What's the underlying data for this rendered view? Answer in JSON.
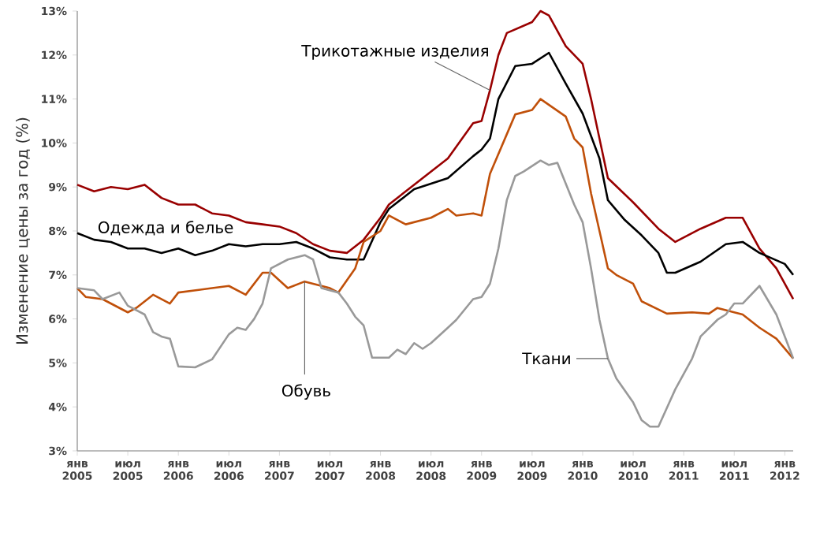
{
  "chart_data": {
    "type": "line",
    "ylabel": "Изменение  цены за год (%)",
    "xlim": [
      "2005-01",
      "2012-02"
    ],
    "xticks": [
      {
        "value": "2005-01",
        "label": "янв 2005"
      },
      {
        "value": "2005-07",
        "label": "июл 2005"
      },
      {
        "value": "2006-01",
        "label": "янв 2006"
      },
      {
        "value": "2006-07",
        "label": "июл 2006"
      },
      {
        "value": "2007-01",
        "label": "янв 2007"
      },
      {
        "value": "2007-07",
        "label": "июл 2007"
      },
      {
        "value": "2008-01",
        "label": "янв 2008"
      },
      {
        "value": "2008-07",
        "label": "июл 2008"
      },
      {
        "value": "2009-01",
        "label": "янв 2009"
      },
      {
        "value": "2009-07",
        "label": "июл 2009"
      },
      {
        "value": "2010-01",
        "label": "янв 2010"
      },
      {
        "value": "2010-07",
        "label": "июл 2010"
      },
      {
        "value": "2011-01",
        "label": "янв 2011"
      },
      {
        "value": "2011-07",
        "label": "июл 2011"
      },
      {
        "value": "2012-01",
        "label": "янв 2012"
      }
    ],
    "ylim": [
      3,
      13
    ],
    "yticks": [
      {
        "value": 3,
        "label": "3%"
      },
      {
        "value": 4,
        "label": "4%"
      },
      {
        "value": 5,
        "label": "5%"
      },
      {
        "value": 6,
        "label": "6%"
      },
      {
        "value": 7,
        "label": "7%"
      },
      {
        "value": 8,
        "label": "8%"
      },
      {
        "value": 9,
        "label": "9%"
      },
      {
        "value": 10,
        "label": "10%"
      },
      {
        "value": 11,
        "label": "11%"
      },
      {
        "value": 12,
        "label": "12%"
      },
      {
        "value": 13,
        "label": "13%"
      }
    ],
    "grid": false,
    "legend": false,
    "series": [
      {
        "name": "Трикотажные изделия",
        "color": "#990000",
        "x": [
          "2005-01",
          "2005-03",
          "2005-05",
          "2005-07",
          "2005-09",
          "2005-11",
          "2006-01",
          "2006-03",
          "2006-05",
          "2006-07",
          "2006-09",
          "2006-11",
          "2007-01",
          "2007-03",
          "2007-05",
          "2007-07",
          "2007-09",
          "2007-11",
          "2008-01",
          "2008-02",
          "2008-06",
          "2008-09",
          "2008-12",
          "2009-01",
          "2009-02",
          "2009-03",
          "2009-04",
          "2009-07",
          "2009-08",
          "2009-09",
          "2009-11",
          "2010-01",
          "2010-02",
          "2010-04",
          "2010-07",
          "2010-10",
          "2010-12",
          "2011-03",
          "2011-06",
          "2011-08",
          "2011-10",
          "2011-12",
          "2012-02"
        ],
        "values": [
          9.05,
          8.9,
          9.0,
          8.95,
          9.05,
          8.75,
          8.6,
          8.6,
          8.4,
          8.35,
          8.2,
          8.15,
          8.1,
          7.95,
          7.7,
          7.55,
          7.5,
          7.8,
          8.3,
          8.6,
          9.2,
          9.65,
          10.45,
          10.5,
          11.2,
          12.0,
          12.5,
          12.75,
          13.0,
          12.9,
          12.2,
          11.8,
          11.0,
          9.2,
          8.65,
          8.05,
          7.75,
          8.05,
          8.3,
          8.3,
          7.6,
          7.15,
          6.45
        ]
      },
      {
        "name": "Одежда и белье",
        "color": "#000000",
        "x": [
          "2005-01",
          "2005-03",
          "2005-05",
          "2005-07",
          "2005-09",
          "2005-11",
          "2006-01",
          "2006-03",
          "2006-05",
          "2006-07",
          "2006-09",
          "2006-11",
          "2007-01",
          "2007-03",
          "2007-05",
          "2007-07",
          "2007-09",
          "2007-11",
          "2008-01",
          "2008-02",
          "2008-05",
          "2008-09",
          "2008-12",
          "2009-01",
          "2009-02",
          "2009-03",
          "2009-05",
          "2009-07",
          "2009-09",
          "2009-11",
          "2010-01",
          "2010-03",
          "2010-04",
          "2010-06",
          "2010-08",
          "2010-10",
          "2010-11",
          "2010-12",
          "2011-03",
          "2011-06",
          "2011-08",
          "2011-10",
          "2012-01",
          "2012-02"
        ],
        "values": [
          7.95,
          7.8,
          7.75,
          7.6,
          7.6,
          7.5,
          7.6,
          7.45,
          7.55,
          7.7,
          7.65,
          7.7,
          7.7,
          7.75,
          7.6,
          7.4,
          7.35,
          7.35,
          8.2,
          8.5,
          8.95,
          9.2,
          9.7,
          9.85,
          10.1,
          11.0,
          11.75,
          11.8,
          12.05,
          11.35,
          10.67,
          9.65,
          8.7,
          8.25,
          7.9,
          7.5,
          7.05,
          7.05,
          7.3,
          7.7,
          7.75,
          7.5,
          7.25,
          7.0
        ]
      },
      {
        "name": "Обувь",
        "color": "#c0500a",
        "x": [
          "2005-01",
          "2005-02",
          "2005-04",
          "2005-07",
          "2005-08",
          "2005-10",
          "2005-12",
          "2006-01",
          "2006-05",
          "2006-07",
          "2006-09",
          "2006-11",
          "2006-12",
          "2007-02",
          "2007-04",
          "2007-07",
          "2007-08",
          "2007-10",
          "2007-11",
          "2008-01",
          "2008-02",
          "2008-04",
          "2008-07",
          "2008-09",
          "2008-10",
          "2008-12",
          "2009-01",
          "2009-02",
          "2009-05",
          "2009-07",
          "2009-08",
          "2009-11",
          "2009-12",
          "2010-01",
          "2010-02",
          "2010-04",
          "2010-05",
          "2010-07",
          "2010-08",
          "2010-11",
          "2011-02",
          "2011-04",
          "2011-05",
          "2011-08",
          "2011-10",
          "2011-12",
          "2012-02"
        ],
        "values": [
          6.7,
          6.5,
          6.45,
          6.15,
          6.25,
          6.55,
          6.35,
          6.6,
          6.7,
          6.75,
          6.55,
          7.05,
          7.05,
          6.7,
          6.85,
          6.7,
          6.6,
          7.15,
          7.75,
          8.0,
          8.35,
          8.15,
          8.3,
          8.5,
          8.35,
          8.4,
          8.35,
          9.3,
          10.65,
          10.75,
          11.0,
          10.6,
          10.1,
          9.9,
          8.85,
          7.15,
          7.0,
          6.8,
          6.4,
          6.12,
          6.15,
          6.12,
          6.25,
          6.1,
          5.8,
          5.55,
          5.1
        ]
      },
      {
        "name": "Ткани",
        "color": "#999999",
        "x": [
          "2005-01",
          "2005-03",
          "2005-04",
          "2005-06",
          "2005-07",
          "2005-09",
          "2005-10",
          "2005-11",
          "2005-12",
          "2006-01",
          "2006-03",
          "2006-05",
          "2006-07",
          "2006-08",
          "2006-09",
          "2006-10",
          "2006-11",
          "2006-12",
          "2007-02",
          "2007-04",
          "2007-05",
          "2007-06",
          "2007-08",
          "2007-09",
          "2007-10",
          "2007-11",
          "2007-12",
          "2008-02",
          "2008-03",
          "2008-04",
          "2008-05",
          "2008-06",
          "2008-07",
          "2008-09",
          "2008-10",
          "2008-12",
          "2009-01",
          "2009-02",
          "2009-03",
          "2009-04",
          "2009-05",
          "2009-06",
          "2009-08",
          "2009-09",
          "2009-10",
          "2009-12",
          "2010-01",
          "2010-02",
          "2010-03",
          "2010-04",
          "2010-05",
          "2010-07",
          "2010-08",
          "2010-09",
          "2010-10",
          "2010-12",
          "2011-02",
          "2011-03",
          "2011-05",
          "2011-06",
          "2011-07",
          "2011-08",
          "2011-10",
          "2011-12",
          "2012-02"
        ],
        "values": [
          6.7,
          6.65,
          6.45,
          6.6,
          6.3,
          6.1,
          5.7,
          5.6,
          5.55,
          4.92,
          4.9,
          5.08,
          5.65,
          5.8,
          5.75,
          6.0,
          6.35,
          7.15,
          7.35,
          7.45,
          7.35,
          6.7,
          6.6,
          6.35,
          6.05,
          5.85,
          5.12,
          5.12,
          5.3,
          5.2,
          5.45,
          5.32,
          5.45,
          5.8,
          5.98,
          6.45,
          6.5,
          6.8,
          7.6,
          8.7,
          9.25,
          9.35,
          9.6,
          9.5,
          9.55,
          8.6,
          8.2,
          7.15,
          5.98,
          5.1,
          4.65,
          4.1,
          3.7,
          3.55,
          3.55,
          4.4,
          5.1,
          5.6,
          5.98,
          6.1,
          6.35,
          6.35,
          6.75,
          6.1,
          5.1
        ]
      }
    ]
  }
}
